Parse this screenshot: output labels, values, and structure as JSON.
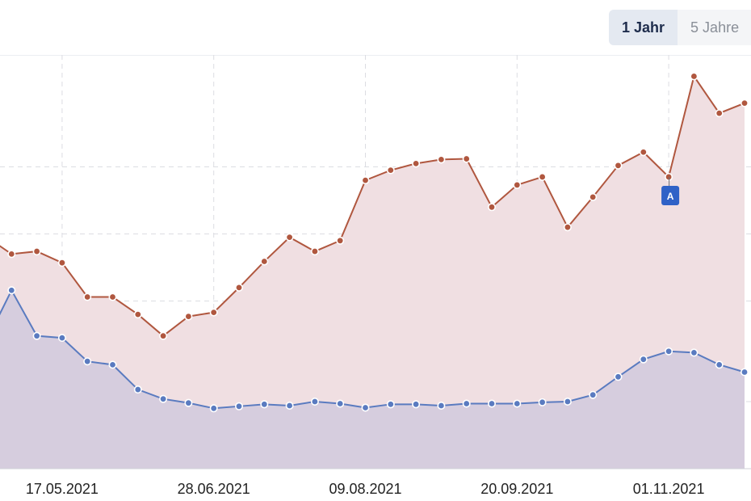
{
  "range_buttons": [
    {
      "label": "1 Jahr",
      "active": true
    },
    {
      "label": "5 Jahre",
      "active": false
    }
  ],
  "chart_data": {
    "type": "area",
    "x_ticks": [
      "17.05.2021",
      "28.06.2021",
      "09.08.2021",
      "20.09.2021",
      "01.11.2021"
    ],
    "grid": true,
    "series": [
      {
        "color": "#b0573f",
        "fill": "#f0dfe2",
        "values": [
          3.46,
          3.2,
          3.24,
          3.07,
          2.56,
          2.56,
          2.3,
          1.98,
          2.27,
          2.33,
          2.7,
          3.09,
          3.45,
          3.24,
          3.4,
          4.3,
          4.45,
          4.55,
          4.61,
          4.62,
          3.9,
          4.23,
          4.35,
          3.6,
          4.05,
          4.52,
          4.72,
          4.35,
          5.85,
          5.3,
          5.45
        ]
      },
      {
        "color": "#5a7bc0",
        "fill": "#d4cbdd",
        "values": [
          1.9,
          2.66,
          1.98,
          1.95,
          1.6,
          1.55,
          1.18,
          1.04,
          0.98,
          0.9,
          0.93,
          0.96,
          0.94,
          1.0,
          0.97,
          0.91,
          0.96,
          0.96,
          0.94,
          0.97,
          0.97,
          0.97,
          0.99,
          1.0,
          1.1,
          1.37,
          1.63,
          1.75,
          1.73,
          1.55,
          1.44
        ]
      }
    ],
    "annotations": [
      {
        "label": "A",
        "index": 27
      }
    ]
  }
}
